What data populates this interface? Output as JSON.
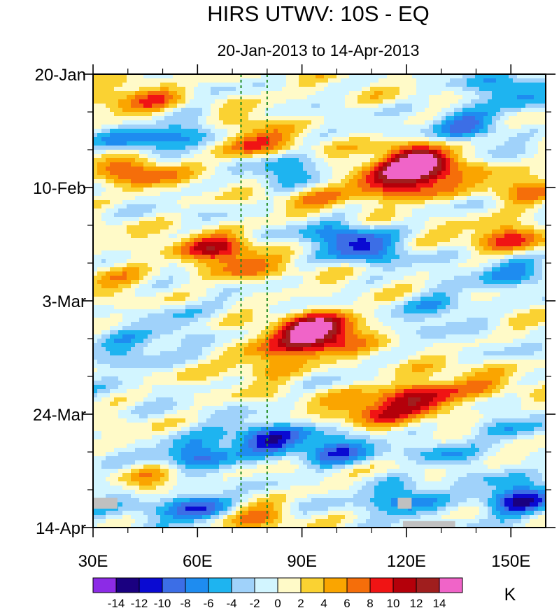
{
  "chart_data": {
    "type": "heatmap",
    "title": "HIRS UTWV: 10S - EQ",
    "subtitle": "20-Jan-2013 to 14-Apr-2013",
    "x_axis": {
      "range": [
        30,
        160
      ],
      "ticks": [
        30,
        60,
        90,
        120,
        150
      ],
      "tick_labels": [
        "30E",
        "60E",
        "90E",
        "120E",
        "150E"
      ],
      "minor_ticks": [
        40,
        50,
        70,
        80,
        100,
        110,
        130,
        140,
        160
      ]
    },
    "y_axis": {
      "range_days": [
        0,
        84
      ],
      "direction": "top-to-bottom",
      "ticks": [
        0,
        21,
        42,
        63,
        84
      ],
      "tick_labels": [
        "20-Jan",
        "10-Feb",
        "3-Mar",
        "24-Mar",
        "14-Apr"
      ]
    },
    "reference_lines": [
      {
        "lon": 72.5,
        "style": "dashed",
        "color": "#1e8a1e"
      },
      {
        "lon": 80,
        "style": "dashed",
        "color": "#1e8a1e"
      }
    ],
    "colorbar": {
      "label": "K",
      "levels": [
        -14,
        -12,
        -10,
        -8,
        -6,
        -4,
        -2,
        0,
        2,
        4,
        6,
        8,
        10,
        12,
        14
      ],
      "level_labels": [
        "-14",
        "-12",
        "-10",
        "-8",
        "-6",
        "-4",
        "-2",
        "0",
        "2",
        "4",
        "6",
        "8",
        "10",
        "12",
        "14"
      ],
      "colors": [
        "#8c2be6",
        "#1a0080",
        "#0a0ad2",
        "#3c6ee6",
        "#1e8cf0",
        "#1eb4f0",
        "#a0d2fa",
        "#d2f5ff",
        "#fffac8",
        "#fad232",
        "#faa500",
        "#f56e0a",
        "#f01414",
        "#b4000a",
        "#a01e1e",
        "#f064c8"
      ]
    },
    "missing_color": "#c0c0c0",
    "features": [
      {
        "lon": 45,
        "day": 4,
        "value": 6
      },
      {
        "lon": 40,
        "day": 10,
        "value": 4
      },
      {
        "lon": 42,
        "day": 18,
        "value": 8
      },
      {
        "lon": 75,
        "day": 13,
        "value": 8
      },
      {
        "lon": 75,
        "day": 7,
        "value": 3
      },
      {
        "lon": 65,
        "day": 32,
        "value": 8
      },
      {
        "lon": 72,
        "day": 36,
        "value": 5
      },
      {
        "lon": 37,
        "day": 37,
        "value": 4
      },
      {
        "lon": 96,
        "day": 47,
        "value": 14
      },
      {
        "lon": 90,
        "day": 50,
        "value": 7
      },
      {
        "lon": 80,
        "day": 53,
        "value": 6
      },
      {
        "lon": 124,
        "day": 16,
        "value": 14
      },
      {
        "lon": 122,
        "day": 20,
        "value": 10
      },
      {
        "lon": 110,
        "day": 20,
        "value": 6
      },
      {
        "lon": 95,
        "day": 23,
        "value": 4
      },
      {
        "lon": 150,
        "day": 30,
        "value": 8
      },
      {
        "lon": 153,
        "day": 21,
        "value": 5
      },
      {
        "lon": 124,
        "day": 60,
        "value": 11
      },
      {
        "lon": 110,
        "day": 62,
        "value": 7
      },
      {
        "lon": 140,
        "day": 58,
        "value": 4
      },
      {
        "lon": 48,
        "day": 76,
        "value": 8
      },
      {
        "lon": 70,
        "day": 79,
        "value": 2
      },
      {
        "lon": 75,
        "day": 82,
        "value": 5
      },
      {
        "lon": 122,
        "day": 73,
        "value": 3
      },
      {
        "lon": 42,
        "day": 12,
        "value": -9
      },
      {
        "lon": 60,
        "day": 10,
        "value": -6
      },
      {
        "lon": 85,
        "day": 18,
        "value": -6
      },
      {
        "lon": 138,
        "day": 9,
        "value": -8
      },
      {
        "lon": 150,
        "day": 3,
        "value": -6
      },
      {
        "lon": 152,
        "day": 36,
        "value": -6
      },
      {
        "lon": 108,
        "day": 32,
        "value": -8
      },
      {
        "lon": 100,
        "day": 29,
        "value": -5
      },
      {
        "lon": 130,
        "day": 43,
        "value": -6
      },
      {
        "lon": 55,
        "day": 45,
        "value": -4
      },
      {
        "lon": 40,
        "day": 52,
        "value": -6
      },
      {
        "lon": 80,
        "day": 68,
        "value": -10
      },
      {
        "lon": 60,
        "day": 70,
        "value": -9
      },
      {
        "lon": 100,
        "day": 70,
        "value": -8
      },
      {
        "lon": 130,
        "day": 70,
        "value": -5
      },
      {
        "lon": 60,
        "day": 80,
        "value": -13
      },
      {
        "lon": 120,
        "day": 78,
        "value": -9
      },
      {
        "lon": 152,
        "day": 79,
        "value": -12
      },
      {
        "lon": 40,
        "day": 78,
        "value": -6
      },
      {
        "lon": 150,
        "day": 66,
        "value": -4
      }
    ],
    "missing_regions": [
      {
        "lon_range": [
          30,
          37
        ],
        "day_range": [
          78.5,
          80.5
        ]
      },
      {
        "lon_range": [
          117.5,
          121.5
        ],
        "day_range": [
          78.5,
          80.5
        ]
      },
      {
        "lon_range": [
          119,
          134
        ],
        "day_range": [
          82.8,
          84
        ]
      }
    ]
  }
}
